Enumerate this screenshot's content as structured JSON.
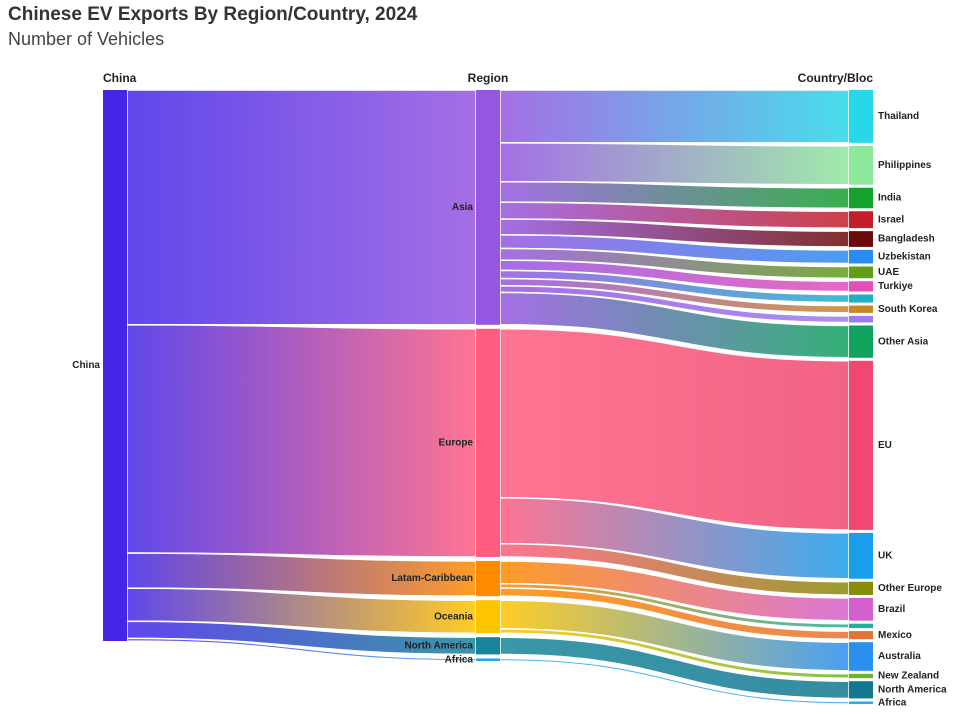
{
  "title": "Chinese EV Exports By Region/Country, 2024",
  "subtitle": "Number of Vehicles",
  "chart_data": {
    "type": "sankey",
    "title": "Chinese EV Exports By Region/Country, 2024",
    "subtitle": "Number of Vehicles",
    "columns": [
      "China",
      "Region",
      "Country/Bloc"
    ],
    "nodes": [
      {
        "id": "china",
        "label": "China",
        "column": 0,
        "color": "#4427e6"
      },
      {
        "id": "asia",
        "label": "Asia",
        "column": 1,
        "color": "#9556e0"
      },
      {
        "id": "europe",
        "label": "Europe",
        "column": 1,
        "color": "#ff5c7f"
      },
      {
        "id": "latam",
        "label": "Latam-Caribbean",
        "column": 1,
        "color": "#ff8a00"
      },
      {
        "id": "oceania",
        "label": "Oceania",
        "column": 1,
        "color": "#ffc400"
      },
      {
        "id": "northam",
        "label": "North America",
        "column": 1,
        "color": "#17849a"
      },
      {
        "id": "africa",
        "label": "Africa",
        "column": 1,
        "color": "#2aa7e6"
      },
      {
        "id": "thailand",
        "label": "Thailand",
        "column": 2,
        "color": "#28d8e8"
      },
      {
        "id": "philippines",
        "label": "Philippines",
        "column": 2,
        "color": "#8ee89b"
      },
      {
        "id": "india",
        "label": "India",
        "column": 2,
        "color": "#16a12d"
      },
      {
        "id": "israel",
        "label": "Israel",
        "column": 2,
        "color": "#c41f2a"
      },
      {
        "id": "bangladesh",
        "label": "Bangladesh",
        "column": 2,
        "color": "#6b0a0a"
      },
      {
        "id": "uzbekistan",
        "label": "Uzbekistan",
        "column": 2,
        "color": "#2a8cf0"
      },
      {
        "id": "uae",
        "label": "UAE",
        "column": 2,
        "color": "#5f9e17"
      },
      {
        "id": "turkiye",
        "label": "Turkiye",
        "column": 2,
        "color": "#e34eb9"
      },
      {
        "id": "asia_small1",
        "label": "",
        "column": 2,
        "color": "#1fb0c8"
      },
      {
        "id": "southkorea",
        "label": "South Korea",
        "column": 2,
        "color": "#c9852a"
      },
      {
        "id": "asia_small2",
        "label": "",
        "column": 2,
        "color": "#9a7cf0"
      },
      {
        "id": "otherasia",
        "label": "Other Asia",
        "column": 2,
        "color": "#0fa35f"
      },
      {
        "id": "eu",
        "label": "EU",
        "column": 2,
        "color": "#f04870"
      },
      {
        "id": "uk",
        "label": "UK",
        "column": 2,
        "color": "#1a9eec"
      },
      {
        "id": "othereurope",
        "label": "Other Europe",
        "column": 2,
        "color": "#8a8a0a"
      },
      {
        "id": "brazil",
        "label": "Brazil",
        "column": 2,
        "color": "#d45fcf"
      },
      {
        "id": "latam_small",
        "label": "",
        "column": 2,
        "color": "#22b09a"
      },
      {
        "id": "mexico",
        "label": "Mexico",
        "column": 2,
        "color": "#e37333"
      },
      {
        "id": "australia",
        "label": "Australia",
        "column": 2,
        "color": "#2b8ff0"
      },
      {
        "id": "newzealand",
        "label": "New Zealand",
        "column": 2,
        "color": "#6fb52a"
      },
      {
        "id": "northam2",
        "label": "North America",
        "column": 2,
        "color": "#127890"
      },
      {
        "id": "africa2",
        "label": "Africa",
        "column": 2,
        "color": "#36a8ec"
      }
    ],
    "links": [
      {
        "source": "china",
        "target": "asia",
        "value": 640000
      },
      {
        "source": "china",
        "target": "europe",
        "value": 622000
      },
      {
        "source": "china",
        "target": "latam",
        "value": 96000
      },
      {
        "source": "china",
        "target": "oceania",
        "value": 90000
      },
      {
        "source": "china",
        "target": "northam",
        "value": 47000
      },
      {
        "source": "china",
        "target": "africa",
        "value": 7000
      },
      {
        "source": "asia",
        "target": "thailand",
        "value": 144000
      },
      {
        "source": "asia",
        "target": "philippines",
        "value": 106000
      },
      {
        "source": "asia",
        "target": "india",
        "value": 56000
      },
      {
        "source": "asia",
        "target": "israel",
        "value": 46000
      },
      {
        "source": "asia",
        "target": "bangladesh",
        "value": 43000
      },
      {
        "source": "asia",
        "target": "uzbekistan",
        "value": 37000
      },
      {
        "source": "asia",
        "target": "uae",
        "value": 32000
      },
      {
        "source": "asia",
        "target": "turkiye",
        "value": 28000
      },
      {
        "source": "asia",
        "target": "asia_small1",
        "value": 22000
      },
      {
        "source": "asia",
        "target": "southkorea",
        "value": 20000
      },
      {
        "source": "asia",
        "target": "asia_small2",
        "value": 18000
      },
      {
        "source": "asia",
        "target": "otherasia",
        "value": 88000
      },
      {
        "source": "europe",
        "target": "eu",
        "value": 461000
      },
      {
        "source": "europe",
        "target": "uk",
        "value": 125000
      },
      {
        "source": "europe",
        "target": "othereurope",
        "value": 36000
      },
      {
        "source": "latam",
        "target": "brazil",
        "value": 62000
      },
      {
        "source": "latam",
        "target": "latam_small",
        "value": 12000
      },
      {
        "source": "latam",
        "target": "mexico",
        "value": 22000
      },
      {
        "source": "oceania",
        "target": "australia",
        "value": 78000
      },
      {
        "source": "oceania",
        "target": "newzealand",
        "value": 12000
      },
      {
        "source": "northam",
        "target": "northam2",
        "value": 47000
      },
      {
        "source": "africa",
        "target": "africa2",
        "value": 7000
      }
    ]
  }
}
